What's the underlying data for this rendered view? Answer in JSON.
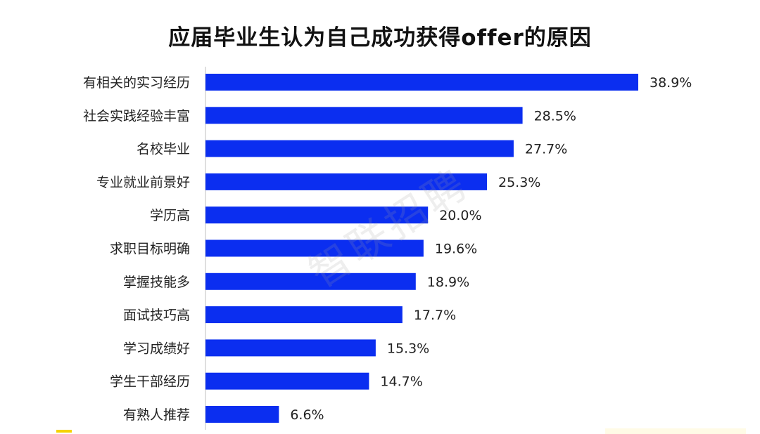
{
  "chart_data": {
    "type": "bar",
    "orientation": "horizontal",
    "title": "应届毕业生认为自己成功获得offer的原因",
    "categories": [
      "有相关的实习经历",
      "社会实践经验丰富",
      "名校毕业",
      "专业就业前景好",
      "学历高",
      "求职目标明确",
      "掌握技能多",
      "面试技巧高",
      "学习成绩好",
      "学生干部经历",
      "有熟人推荐"
    ],
    "values": [
      38.9,
      28.5,
      27.7,
      25.3,
      20.0,
      19.6,
      18.9,
      17.7,
      15.3,
      14.7,
      6.6
    ],
    "value_labels": [
      "38.9%",
      "28.5%",
      "27.7%",
      "25.3%",
      "20.0%",
      "19.6%",
      "18.9%",
      "17.7%",
      "15.3%",
      "14.7%",
      "6.6%"
    ],
    "unit": "%",
    "xlim": [
      0,
      40
    ],
    "grid": false,
    "bar_color": "#0b2ef0"
  },
  "watermark": "智联招聘"
}
